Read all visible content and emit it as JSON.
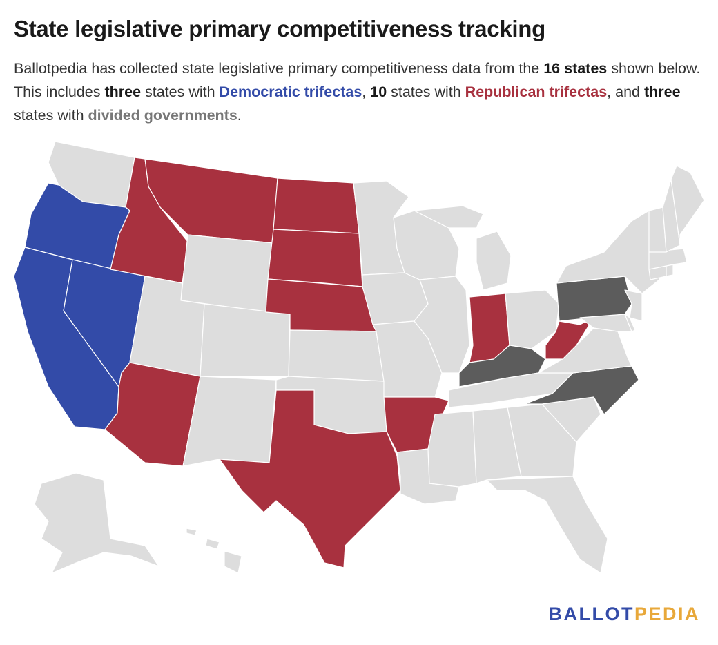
{
  "title": "State legislative primary competitiveness tracking",
  "intro": {
    "p1": "Ballotpedia has collected state legislative primary competitiveness data from the ",
    "b1": "16 states",
    "p2": " shown below. This includes ",
    "b2": "three",
    "p3": " states with ",
    "dem": "Democratic trifectas",
    "p4": ", ",
    "b3": "10",
    "p5": " states with ",
    "rep": "Republican trifectas",
    "p6": ", and ",
    "b4": "three",
    "p7": " states with ",
    "div": "divided governments",
    "p8": "."
  },
  "colors": {
    "democratic": "#334ba8",
    "republican": "#a8313f",
    "divided": "#5c5c5c",
    "not_tracked": "#dddddd",
    "border": "#ffffff"
  },
  "map": {
    "categories": {
      "democratic": [
        "California",
        "Nevada",
        "Oregon"
      ],
      "republican": [
        "Arizona",
        "Arkansas",
        "Idaho",
        "Indiana",
        "Montana",
        "Nebraska",
        "North Dakota",
        "South Dakota",
        "Texas",
        "West Virginia"
      ],
      "divided": [
        "Kentucky",
        "North Carolina",
        "Pennsylvania"
      ]
    }
  },
  "logo": {
    "part1": "BALLOT",
    "part2": "PEDIA"
  }
}
